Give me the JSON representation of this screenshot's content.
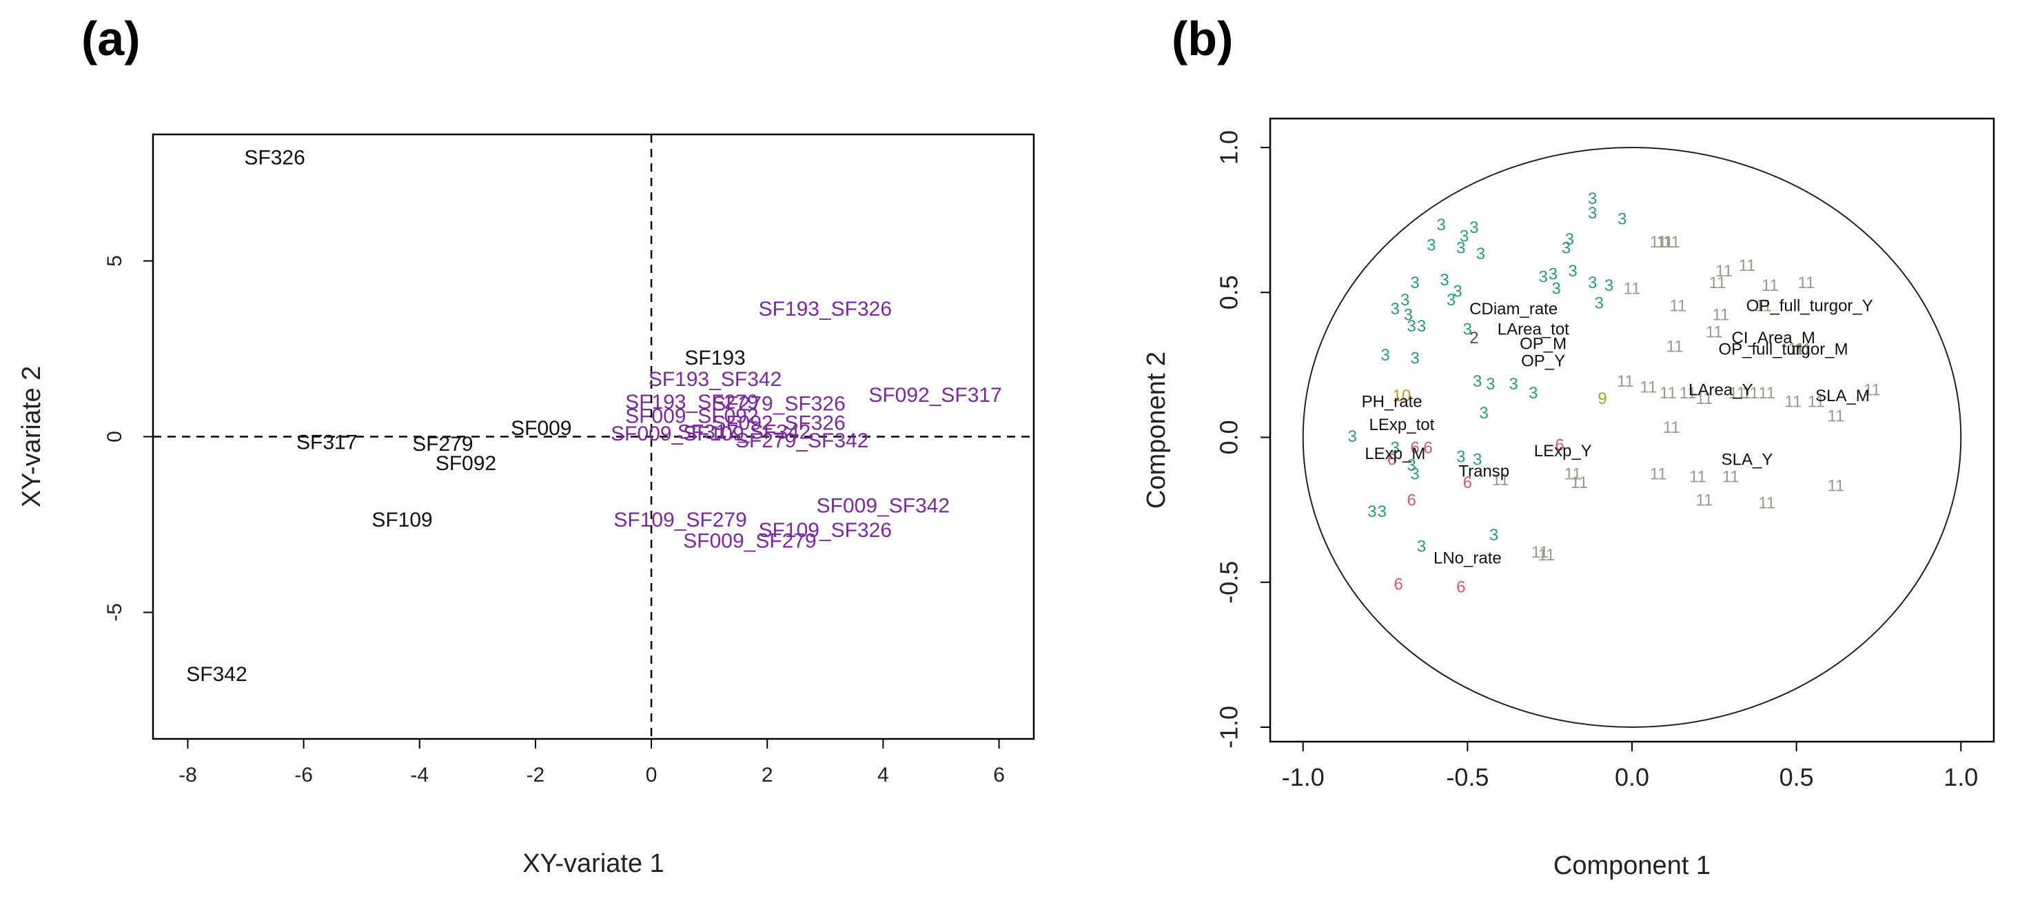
{
  "panels": {
    "a": {
      "label": "(a)"
    },
    "b": {
      "label": "(b)"
    }
  },
  "chart_data": [
    {
      "id": "a",
      "type": "scatter",
      "xlabel": "XY-variate 1",
      "ylabel": "XY-variate 2",
      "xlim": [
        -8.6,
        6.6
      ],
      "ylim": [
        -8.6,
        8.6
      ],
      "xticks": [
        -8,
        -6,
        -4,
        -2,
        0,
        2,
        4,
        6
      ],
      "yticks": [
        -5,
        0,
        5
      ],
      "reference_lines": {
        "x": 0,
        "y": 0,
        "style": "dashed"
      },
      "colors": {
        "individuals": "#111111",
        "hybrids": "#7a2a9e"
      },
      "series": [
        {
          "name": "individuals",
          "points": [
            {
              "label": "SF326",
              "x": -6.5,
              "y": 7.9
            },
            {
              "label": "SF193",
              "x": 1.1,
              "y": 2.2
            },
            {
              "label": "SF009",
              "x": -1.9,
              "y": 0.2
            },
            {
              "label": "SF317",
              "x": -5.6,
              "y": -0.2
            },
            {
              "label": "SF279",
              "x": -3.6,
              "y": -0.25
            },
            {
              "label": "SF092",
              "x": -3.2,
              "y": -0.8
            },
            {
              "label": "SF109",
              "x": -4.3,
              "y": -2.4
            },
            {
              "label": "SF342",
              "x": -7.5,
              "y": -6.8
            }
          ]
        },
        {
          "name": "hybrids",
          "points": [
            {
              "label": "SF193_SF326",
              "x": 3.0,
              "y": 3.6
            },
            {
              "label": "SF193_SF342",
              "x": 1.1,
              "y": 1.6
            },
            {
              "label": "SF092_SF317",
              "x": 4.9,
              "y": 1.15
            },
            {
              "label": "SF193_SF279",
              "x": 0.7,
              "y": 0.95
            },
            {
              "label": "SF279_SF326",
              "x": 2.2,
              "y": 0.9
            },
            {
              "label": "SF009_SF092",
              "x": 0.7,
              "y": 0.55
            },
            {
              "label": "SF092_SF326",
              "x": 2.2,
              "y": 0.35
            },
            {
              "label": "SF009_SF109",
              "x": 0.45,
              "y": 0.05
            },
            {
              "label": "SF317_SF342",
              "x": 1.6,
              "y": 0.1
            },
            {
              "label": "SF279_SF342",
              "x": 2.6,
              "y": -0.15
            },
            {
              "label": "SF009_SF342",
              "x": 4.0,
              "y": -2.0
            },
            {
              "label": "SF109_SF279",
              "x": 0.5,
              "y": -2.4
            },
            {
              "label": "SF109_SF326",
              "x": 3.0,
              "y": -2.7
            },
            {
              "label": "SF009_SF279",
              "x": 1.7,
              "y": -3.0
            }
          ]
        }
      ]
    },
    {
      "id": "b",
      "type": "scatter",
      "subtype": "correlation-circle",
      "xlabel": "Component  1",
      "ylabel": "Component  2",
      "xlim": [
        -1.1,
        1.1
      ],
      "ylim": [
        -1.05,
        1.1
      ],
      "xticks": [
        -1.0,
        -0.5,
        0.0,
        0.5,
        1.0
      ],
      "xtick_labels": [
        "-1.0",
        "-0.5",
        "0.0",
        "0.5",
        "1.0"
      ],
      "yticks": [
        -1.0,
        -0.5,
        0.0,
        0.5,
        1.0
      ],
      "ytick_labels": [
        "-1.0",
        "-0.5",
        "0.0",
        "0.5",
        "1.0"
      ],
      "circle_radius": 1.0,
      "colors": {
        "3": "#2a9a80",
        "11": "#9a9a8c",
        "6": "#cc5a78",
        "9": "#9aa832",
        "10": "#c99a28",
        "2": "#6a3a6a",
        "variables": "#111111"
      },
      "markers": [
        {
          "label": "3",
          "x": -0.12,
          "y": 0.82
        },
        {
          "label": "3",
          "x": -0.12,
          "y": 0.77
        },
        {
          "label": "3",
          "x": -0.03,
          "y": 0.75
        },
        {
          "label": "3",
          "x": -0.58,
          "y": 0.73
        },
        {
          "label": "3",
          "x": -0.48,
          "y": 0.72
        },
        {
          "label": "3",
          "x": -0.51,
          "y": 0.69
        },
        {
          "label": "3",
          "x": -0.52,
          "y": 0.65
        },
        {
          "label": "3",
          "x": -0.61,
          "y": 0.66
        },
        {
          "label": "3",
          "x": -0.19,
          "y": 0.68
        },
        {
          "label": "3",
          "x": -0.2,
          "y": 0.65
        },
        {
          "label": "3",
          "x": -0.46,
          "y": 0.63
        },
        {
          "label": "3",
          "x": -0.57,
          "y": 0.54
        },
        {
          "label": "3",
          "x": -0.66,
          "y": 0.53
        },
        {
          "label": "3",
          "x": -0.55,
          "y": 0.47
        },
        {
          "label": "3",
          "x": -0.69,
          "y": 0.47
        },
        {
          "label": "3",
          "x": -0.72,
          "y": 0.44
        },
        {
          "label": "3",
          "x": -0.68,
          "y": 0.42
        },
        {
          "label": "3",
          "x": -0.53,
          "y": 0.5
        },
        {
          "label": "3",
          "x": -0.27,
          "y": 0.55
        },
        {
          "label": "3",
          "x": -0.24,
          "y": 0.56
        },
        {
          "label": "3",
          "x": -0.12,
          "y": 0.53
        },
        {
          "label": "3",
          "x": -0.18,
          "y": 0.57
        },
        {
          "label": "3",
          "x": -0.07,
          "y": 0.52
        },
        {
          "label": "3",
          "x": -0.23,
          "y": 0.51
        },
        {
          "label": "3",
          "x": -0.1,
          "y": 0.46
        },
        {
          "label": "3",
          "x": -0.67,
          "y": 0.38
        },
        {
          "label": "3",
          "x": -0.64,
          "y": 0.38
        },
        {
          "label": "3",
          "x": -0.75,
          "y": 0.28
        },
        {
          "label": "3",
          "x": -0.66,
          "y": 0.27
        },
        {
          "label": "3",
          "x": -0.5,
          "y": 0.37
        },
        {
          "label": "3",
          "x": -0.47,
          "y": 0.19
        },
        {
          "label": "3",
          "x": -0.43,
          "y": 0.18
        },
        {
          "label": "3",
          "x": -0.36,
          "y": 0.18
        },
        {
          "label": "3",
          "x": -0.3,
          "y": 0.15
        },
        {
          "label": "3",
          "x": -0.45,
          "y": 0.08
        },
        {
          "label": "3",
          "x": -0.85,
          "y": 0.0
        },
        {
          "label": "3",
          "x": -0.72,
          "y": -0.04
        },
        {
          "label": "3",
          "x": -0.67,
          "y": -0.1
        },
        {
          "label": "3",
          "x": -0.66,
          "y": -0.13
        },
        {
          "label": "3",
          "x": -0.52,
          "y": -0.07
        },
        {
          "label": "3",
          "x": -0.47,
          "y": -0.08
        },
        {
          "label": "3",
          "x": -0.79,
          "y": -0.26
        },
        {
          "label": "3",
          "x": -0.76,
          "y": -0.26
        },
        {
          "label": "3",
          "x": -0.64,
          "y": -0.38
        },
        {
          "label": "3",
          "x": -0.42,
          "y": -0.34
        },
        {
          "label": "2",
          "x": -0.48,
          "y": 0.34
        },
        {
          "label": "9",
          "x": -0.09,
          "y": 0.13
        },
        {
          "label": "10",
          "x": -0.7,
          "y": 0.14
        },
        {
          "label": "6",
          "x": -0.66,
          "y": -0.04
        },
        {
          "label": "6",
          "x": -0.73,
          "y": -0.08
        },
        {
          "label": "6",
          "x": -0.62,
          "y": -0.04
        },
        {
          "label": "6",
          "x": -0.5,
          "y": -0.16
        },
        {
          "label": "6",
          "x": -0.67,
          "y": -0.22
        },
        {
          "label": "6",
          "x": -0.22,
          "y": -0.03
        },
        {
          "label": "6",
          "x": -0.71,
          "y": -0.51
        },
        {
          "label": "6",
          "x": -0.52,
          "y": -0.52
        },
        {
          "label": "11",
          "x": 0.08,
          "y": 0.67
        },
        {
          "label": "11",
          "x": 0.1,
          "y": 0.67
        },
        {
          "label": "11",
          "x": 0.12,
          "y": 0.67
        },
        {
          "label": "11",
          "x": 0.28,
          "y": 0.57
        },
        {
          "label": "11",
          "x": 0.35,
          "y": 0.59
        },
        {
          "label": "11",
          "x": 0.26,
          "y": 0.53
        },
        {
          "label": "11",
          "x": 0.42,
          "y": 0.52
        },
        {
          "label": "11",
          "x": 0.53,
          "y": 0.53
        },
        {
          "label": "11",
          "x": 0.0,
          "y": 0.51
        },
        {
          "label": "11",
          "x": 0.14,
          "y": 0.45
        },
        {
          "label": "11",
          "x": 0.27,
          "y": 0.42
        },
        {
          "label": "11",
          "x": 0.4,
          "y": 0.45
        },
        {
          "label": "11",
          "x": 0.25,
          "y": 0.36
        },
        {
          "label": "11",
          "x": 0.13,
          "y": 0.31
        },
        {
          "label": "11",
          "x": 0.5,
          "y": 0.3
        },
        {
          "label": "11",
          "x": 0.52,
          "y": 0.3
        },
        {
          "label": "11",
          "x": -0.02,
          "y": 0.19
        },
        {
          "label": "11",
          "x": 0.05,
          "y": 0.17
        },
        {
          "label": "11",
          "x": 0.11,
          "y": 0.15
        },
        {
          "label": "11",
          "x": 0.17,
          "y": 0.15
        },
        {
          "label": "11",
          "x": 0.22,
          "y": 0.13
        },
        {
          "label": "11",
          "x": 0.32,
          "y": 0.15
        },
        {
          "label": "11",
          "x": 0.36,
          "y": 0.15
        },
        {
          "label": "11",
          "x": 0.41,
          "y": 0.15
        },
        {
          "label": "11",
          "x": 0.49,
          "y": 0.12
        },
        {
          "label": "11",
          "x": 0.56,
          "y": 0.12
        },
        {
          "label": "11",
          "x": 0.62,
          "y": 0.07
        },
        {
          "label": "11",
          "x": 0.73,
          "y": 0.16
        },
        {
          "label": "11",
          "x": 0.12,
          "y": 0.03
        },
        {
          "label": "11",
          "x": 0.08,
          "y": -0.13
        },
        {
          "label": "11",
          "x": 0.2,
          "y": -0.14
        },
        {
          "label": "11",
          "x": 0.3,
          "y": -0.14
        },
        {
          "label": "11",
          "x": -0.18,
          "y": -0.13
        },
        {
          "label": "11",
          "x": -0.16,
          "y": -0.16
        },
        {
          "label": "11",
          "x": -0.4,
          "y": -0.15
        },
        {
          "label": "11",
          "x": 0.62,
          "y": -0.17
        },
        {
          "label": "11",
          "x": 0.41,
          "y": -0.23
        },
        {
          "label": "11",
          "x": 0.22,
          "y": -0.22
        },
        {
          "label": "11",
          "x": -0.28,
          "y": -0.4
        },
        {
          "label": "11",
          "x": -0.26,
          "y": -0.41
        }
      ],
      "variables": [
        {
          "label": "CDiam_rate",
          "x": -0.36,
          "y": 0.44
        },
        {
          "label": "LArea_tot",
          "x": -0.3,
          "y": 0.37
        },
        {
          "label": "OP_M",
          "x": -0.27,
          "y": 0.32
        },
        {
          "label": "OP_Y",
          "x": -0.27,
          "y": 0.26
        },
        {
          "label": "OP_full_turgor_Y",
          "x": 0.54,
          "y": 0.45
        },
        {
          "label": "CI_Area_M",
          "x": 0.43,
          "y": 0.34
        },
        {
          "label": "OP_full_turgor_M",
          "x": 0.46,
          "y": 0.3
        },
        {
          "label": "PH_rate",
          "x": -0.73,
          "y": 0.12
        },
        {
          "label": "LExp_tot",
          "x": -0.7,
          "y": 0.04
        },
        {
          "label": "LArea_Y",
          "x": 0.27,
          "y": 0.16
        },
        {
          "label": "SLA_M",
          "x": 0.64,
          "y": 0.14
        },
        {
          "label": "LExp_M",
          "x": -0.72,
          "y": -0.06
        },
        {
          "label": "LExp_Y",
          "x": -0.21,
          "y": -0.05
        },
        {
          "label": "SLA_Y",
          "x": 0.35,
          "y": -0.08
        },
        {
          "label": "Transp",
          "x": -0.45,
          "y": -0.12
        },
        {
          "label": "LNo_rate",
          "x": -0.5,
          "y": -0.42
        }
      ]
    }
  ]
}
